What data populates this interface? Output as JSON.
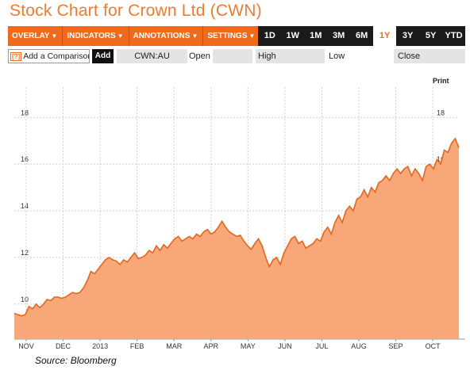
{
  "title": "Stock Chart for Crown Ltd (CWN)",
  "toolbar": {
    "menus": [
      {
        "label": "OVERLAY",
        "caret": "▼"
      },
      {
        "label": "INDICATORS",
        "caret": "▼"
      },
      {
        "label": "ANNOTATIONS",
        "caret": "▼"
      },
      {
        "label": "SETTINGS",
        "caret": "▼"
      }
    ],
    "ranges": [
      "1D",
      "1W",
      "1M",
      "3M",
      "6M",
      "1Y",
      "3Y",
      "5Y",
      "YTD"
    ],
    "active_range": "1Y"
  },
  "infobar": {
    "compare_icon": "[?]",
    "compare_label": "Add a Comparison",
    "add_label": "Add",
    "ticker": "CWN:AU",
    "open_label": "Open",
    "high_label": "High",
    "low_label": "Low",
    "close_label": "Close"
  },
  "print_label": "Print",
  "source": "Source: Bloomberg",
  "colors": {
    "accent": "#f06a1c",
    "fill": "#f7a778",
    "line": "#e8661c"
  },
  "chart_data": {
    "type": "area",
    "x_ticks": [
      "NOV",
      "DEC",
      "2013",
      "FEB",
      "MAR",
      "APR",
      "MAY",
      "JUN",
      "JUL",
      "AUG",
      "SEP",
      "OCT"
    ],
    "y_ticks": [
      10,
      12,
      14,
      16,
      18
    ],
    "ylim": [
      8.5,
      19.3
    ],
    "grid": true,
    "series": [
      {
        "values": [
          9.6,
          9.55,
          9.5,
          9.55,
          9.9,
          9.8,
          10.0,
          9.85,
          10.0,
          10.2,
          10.15,
          10.3,
          10.3,
          10.25,
          10.3,
          10.4,
          10.5,
          10.45,
          10.5,
          10.7,
          11.0,
          11.4,
          11.3,
          11.5,
          11.7,
          11.9,
          12.0,
          11.9,
          11.85,
          11.7,
          11.9,
          11.8,
          12.0,
          12.2,
          11.95,
          12.0,
          12.1,
          12.3,
          12.2,
          12.5,
          12.3,
          12.55,
          12.4,
          12.6,
          12.8,
          12.9,
          12.7,
          12.8,
          12.9,
          12.8,
          13.0,
          12.9,
          13.1,
          13.2,
          13.0,
          13.1,
          13.3,
          13.55,
          13.3,
          13.1,
          13.0,
          12.9,
          12.95,
          12.7,
          12.5,
          12.35,
          12.6,
          12.8,
          12.5,
          12.0,
          11.6,
          11.9,
          12.0,
          11.7,
          12.2,
          12.5,
          12.8,
          12.9,
          12.6,
          12.7,
          12.4,
          12.5,
          12.6,
          12.8,
          12.7,
          13.1,
          13.3,
          13.0,
          13.5,
          13.8,
          13.5,
          14.0,
          14.2,
          14.0,
          14.5,
          14.6,
          14.9,
          14.6,
          15.0,
          14.8,
          15.2,
          15.3,
          15.5,
          15.3,
          15.6,
          15.8,
          15.6,
          15.8,
          15.9,
          15.5,
          15.8,
          15.6,
          15.3,
          15.9,
          16.0,
          15.8,
          16.2,
          16.0,
          16.6,
          16.5,
          16.9,
          17.1,
          16.7
        ]
      }
    ]
  }
}
